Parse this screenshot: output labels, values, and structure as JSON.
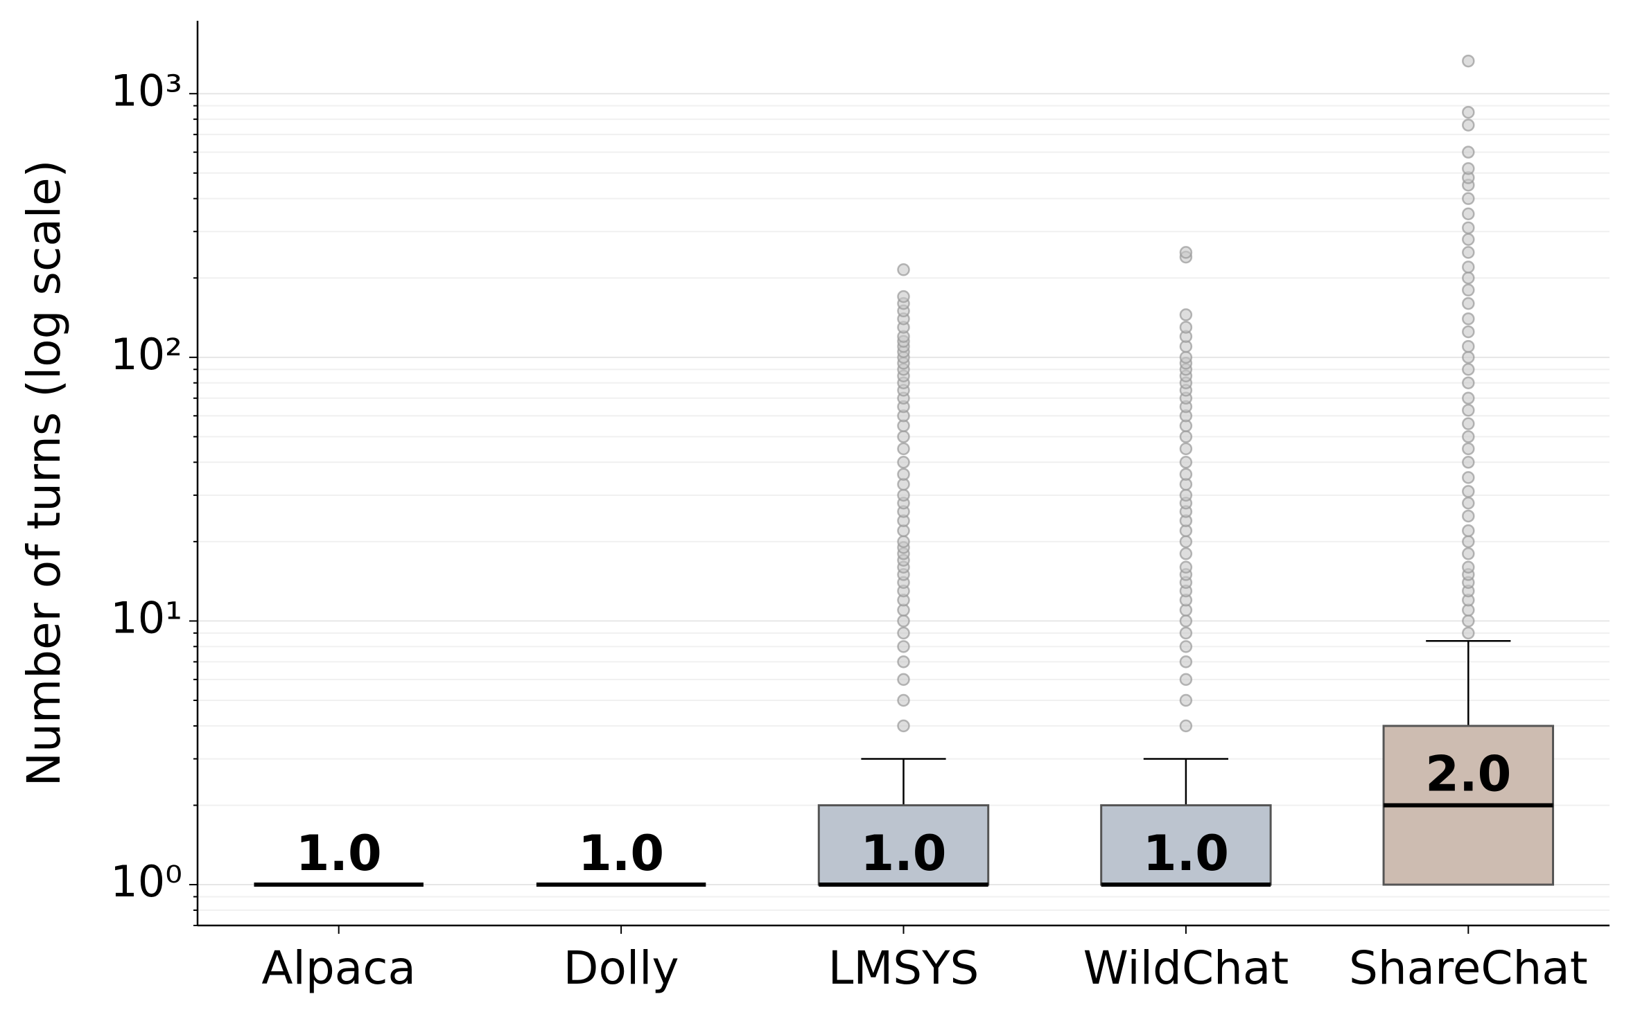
{
  "chart_data": {
    "type": "box",
    "ylabel": "Number of turns (log scale)",
    "categories": [
      "Alpaca",
      "Dolly",
      "LMSYS",
      "WildChat",
      "ShareChat"
    ],
    "log_y": true,
    "ylim": [
      0.7,
      1890
    ],
    "yticks": [
      {
        "value": 1,
        "label": "10⁰"
      },
      {
        "value": 10,
        "label": "10¹"
      },
      {
        "value": 100,
        "label": "10²"
      },
      {
        "value": 1000,
        "label": "10³"
      }
    ],
    "yminorticks": [
      0.7,
      0.8,
      0.9,
      2,
      3,
      4,
      5,
      6,
      7,
      8,
      9,
      20,
      30,
      40,
      50,
      60,
      70,
      80,
      90,
      200,
      300,
      400,
      500,
      600,
      700,
      800,
      900
    ],
    "grid": true,
    "boxes": [
      {
        "min": 1,
        "q1": 1,
        "median": 1,
        "q3": 1,
        "max": 1,
        "median_label": "1.0",
        "color": null,
        "fliers": []
      },
      {
        "min": 1,
        "q1": 1,
        "median": 1,
        "q3": 1,
        "max": 1,
        "median_label": "1.0",
        "color": null,
        "fliers": []
      },
      {
        "min": 1,
        "q1": 1,
        "median": 1,
        "q3": 2,
        "max": 3,
        "median_label": "1.0",
        "color": "#bcc4cf",
        "fliers": [
          4,
          5,
          6,
          7,
          8,
          9,
          10,
          11,
          12,
          13,
          14,
          15,
          16,
          17,
          18,
          19,
          20,
          22,
          24,
          26,
          28,
          30,
          33,
          36,
          40,
          45,
          50,
          55,
          60,
          65,
          70,
          75,
          80,
          85,
          90,
          95,
          100,
          105,
          110,
          115,
          120,
          130,
          140,
          150,
          160,
          170,
          215
        ]
      },
      {
        "min": 1,
        "q1": 1,
        "median": 1,
        "q3": 2,
        "max": 3,
        "median_label": "1.0",
        "color": "#bcc4cf",
        "fliers": [
          4,
          5,
          6,
          7,
          8,
          9,
          10,
          11,
          12,
          13,
          14,
          15,
          16,
          18,
          20,
          22,
          24,
          26,
          28,
          30,
          33,
          36,
          40,
          45,
          50,
          55,
          60,
          65,
          70,
          75,
          80,
          85,
          90,
          95,
          100,
          110,
          120,
          130,
          145,
          240,
          250
        ]
      },
      {
        "min": 1,
        "q1": 1,
        "median": 2,
        "q3": 4,
        "max": 8.4,
        "median_label": "2.0",
        "color": "#cdbcb1",
        "fliers": [
          9,
          10,
          11,
          12,
          13,
          14,
          15,
          16,
          18,
          20,
          22,
          25,
          28,
          31,
          35,
          40,
          45,
          50,
          56,
          63,
          70,
          80,
          90,
          100,
          110,
          125,
          140,
          160,
          180,
          200,
          220,
          250,
          280,
          310,
          350,
          400,
          450,
          480,
          520,
          600,
          760,
          850,
          1330
        ]
      }
    ]
  }
}
